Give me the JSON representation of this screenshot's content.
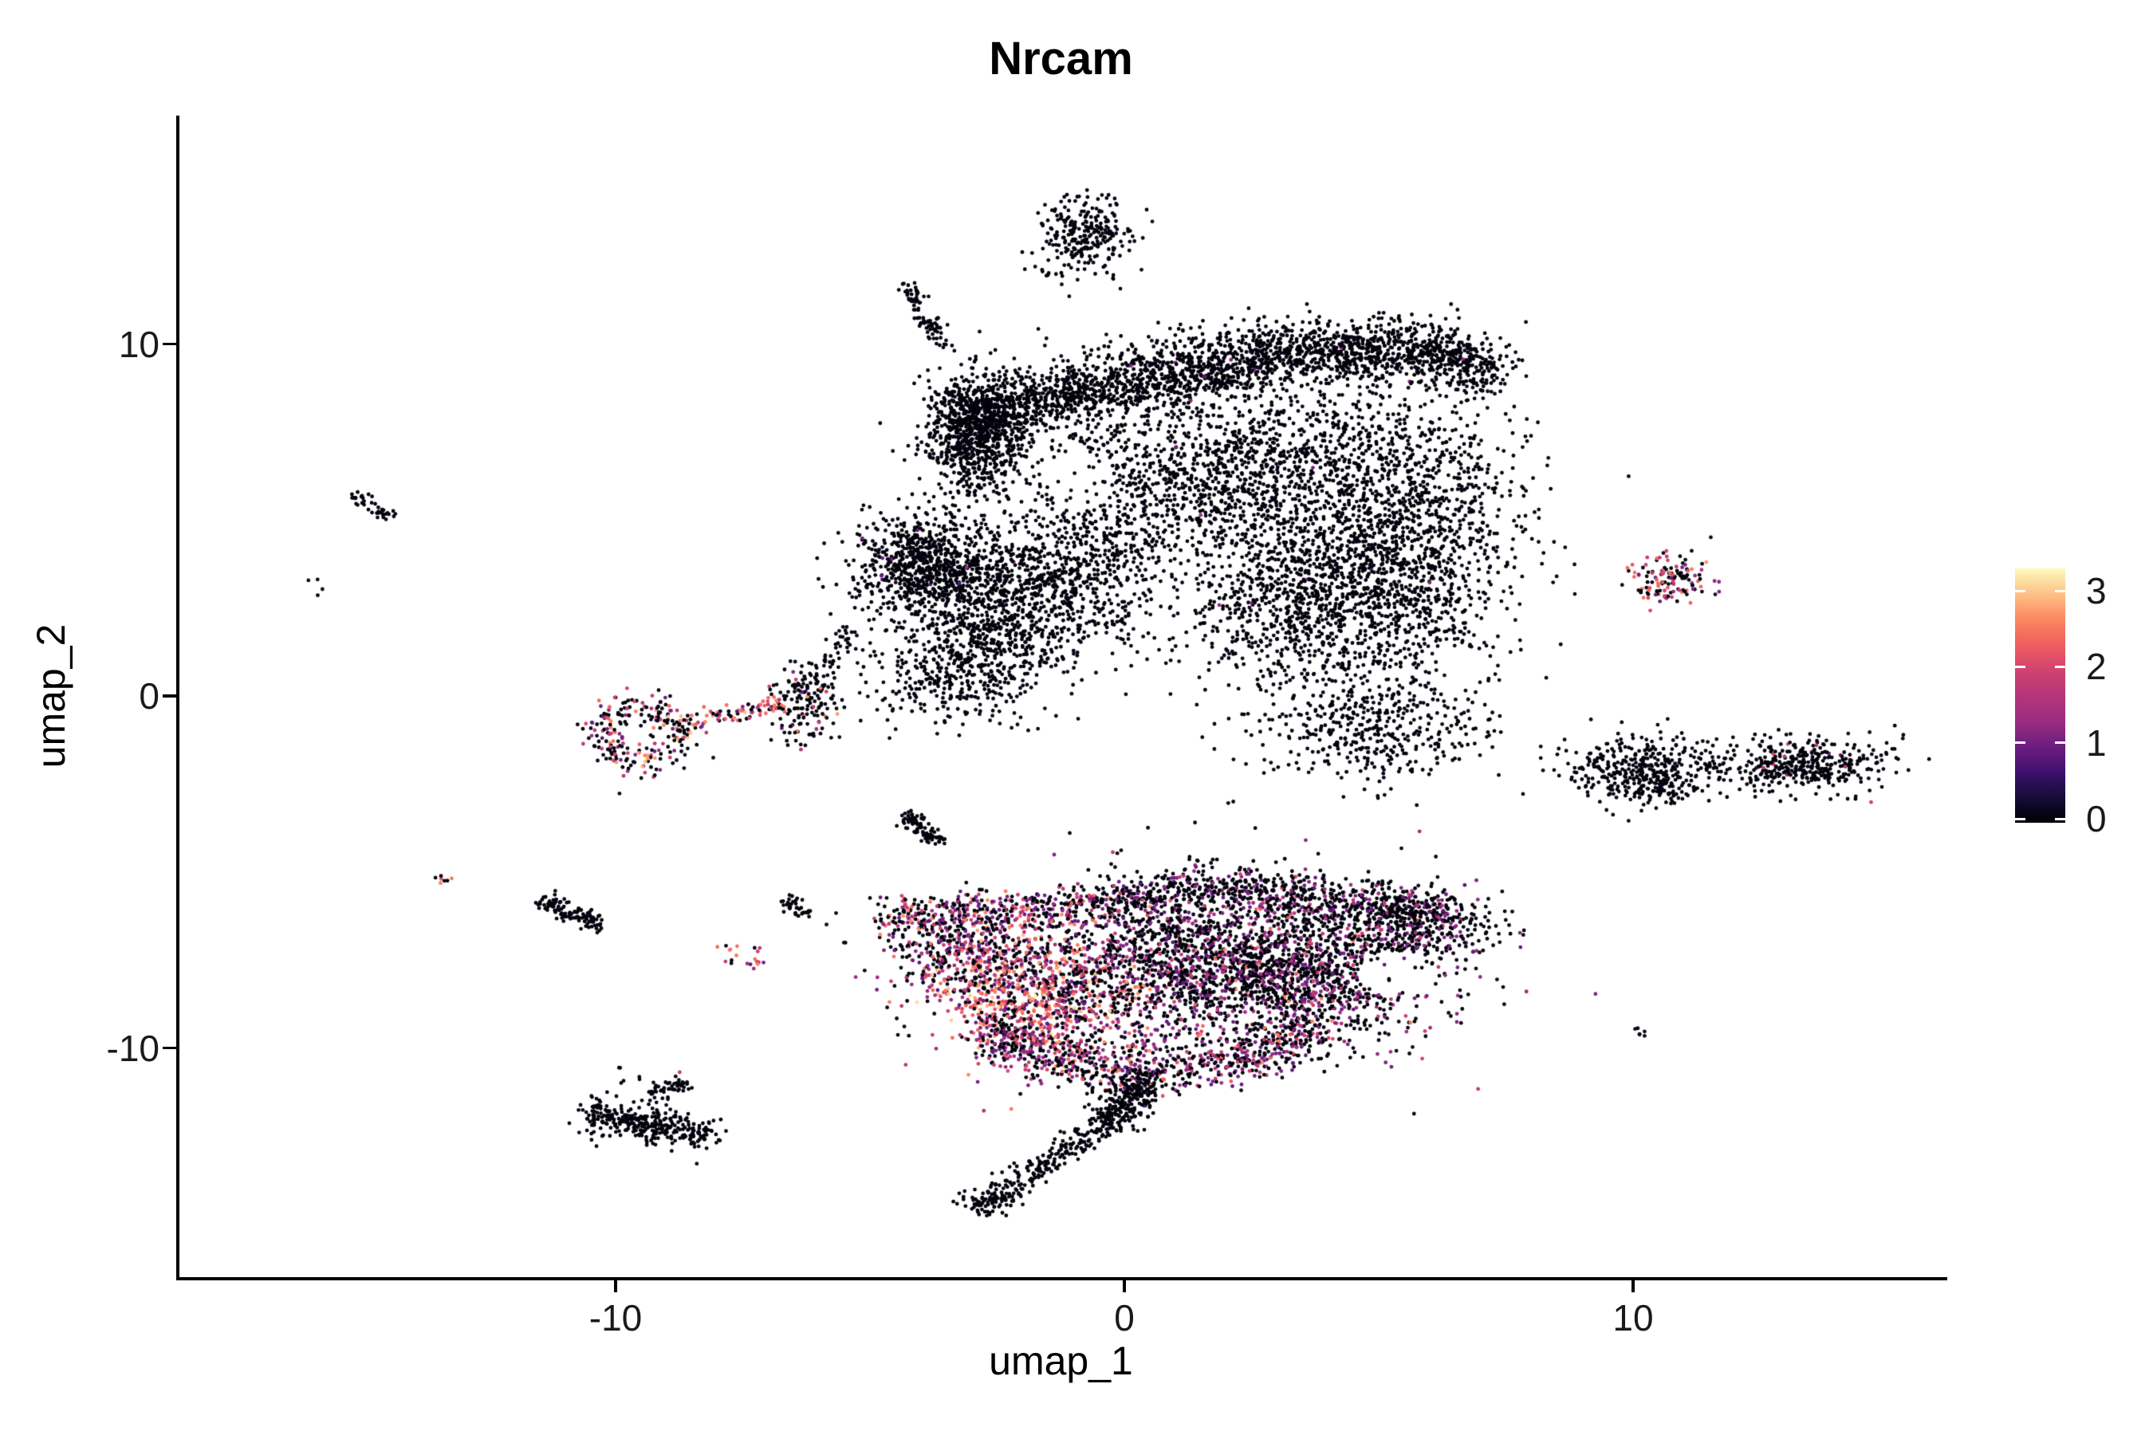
{
  "title": "Nrcam",
  "axes": {
    "x": {
      "label": "umap_1",
      "ticks": [
        {
          "v": -10,
          "label": "-10"
        },
        {
          "v": 0,
          "label": "0"
        },
        {
          "v": 10,
          "label": "10"
        }
      ],
      "range": [
        -18.6,
        16.1
      ]
    },
    "y": {
      "label": "umap_2",
      "ticks": [
        {
          "v": 10,
          "label": "10"
        },
        {
          "v": 0,
          "label": "0"
        },
        {
          "v": -10,
          "label": "-10"
        }
      ],
      "range": [
        -16.5,
        16.5
      ]
    }
  },
  "colorbar": {
    "labels": [
      {
        "v": 3,
        "label": "3"
      },
      {
        "v": 2,
        "label": "2"
      },
      {
        "v": 1,
        "label": "1"
      },
      {
        "v": 0,
        "label": "0"
      }
    ],
    "vmin": -0.05,
    "vmax": 3.29,
    "norm_max": 3.3,
    "magma_stops": [
      [
        0.0,
        "#000004"
      ],
      [
        0.1,
        "#180f3e"
      ],
      [
        0.2,
        "#451077"
      ],
      [
        0.3,
        "#721f81"
      ],
      [
        0.4,
        "#9f2f7f"
      ],
      [
        0.5,
        "#b73779"
      ],
      [
        0.6,
        "#d3436e"
      ],
      [
        0.7,
        "#f1605d"
      ],
      [
        0.8,
        "#fc8961"
      ],
      [
        0.9,
        "#fec488"
      ],
      [
        1.0,
        "#fcfdbf"
      ]
    ]
  },
  "chart_data": {
    "type": "scatter",
    "title": "Nrcam",
    "xlabel": "umap_1",
    "ylabel": "umap_2",
    "xlim": [
      -18.6,
      16.1
    ],
    "ylim": [
      -16.5,
      16.5
    ],
    "grid": false,
    "legend_position": "right-colorbar",
    "point_radius_px": 2.4,
    "seed": 7,
    "expr_levels": {
      "black": [
        0,
        0.1
      ],
      "purple": [
        0.8,
        1.35
      ],
      "magenta": [
        1.6,
        2.0
      ],
      "pinkred": [
        2.0,
        2.35
      ],
      "salmon": [
        2.35,
        2.7
      ],
      "orange": [
        2.7,
        3.0
      ],
      "light": [
        3.0,
        3.3
      ]
    },
    "clusters": [
      {
        "id": "t1",
        "shape": "gauss",
        "c": [
          -0.72,
          13.25
        ],
        "s": [
          0.42,
          0.5
        ],
        "n": 230,
        "mix": {
          "black": 1
        }
      },
      {
        "id": "t1b",
        "shape": "gauss",
        "c": [
          -0.9,
          12.35
        ],
        "s": [
          0.55,
          0.3
        ],
        "n": 45,
        "mix": {
          "black": 1
        }
      },
      {
        "id": "t2",
        "shape": "band",
        "path": [
          [
            -4.3,
            11.7
          ],
          [
            -3.55,
            9.9
          ]
        ],
        "w": 0.11,
        "n": 85,
        "mix": {
          "black": 1
        }
      },
      {
        "id": "u1",
        "shape": "band",
        "path": [
          [
            -3.3,
            7.9
          ],
          [
            0.3,
            9.0
          ],
          [
            3.4,
            9.7
          ],
          [
            6.5,
            9.9
          ],
          [
            7.2,
            8.8
          ]
        ],
        "w": 0.42,
        "n": 2300,
        "mix": {
          "black": 0.995,
          "purple": 0.005
        }
      },
      {
        "id": "u2",
        "shape": "gauss",
        "c": [
          -2.88,
          7.45
        ],
        "s": [
          0.5,
          0.85
        ],
        "n": 800,
        "mix": {
          "black": 1
        }
      },
      {
        "id": "u3",
        "shape": "gauss",
        "c": [
          2.2,
          6.4
        ],
        "s": [
          2.0,
          1.3
        ],
        "n": 1550,
        "mix": {
          "black": 0.995,
          "purple": 0.005
        }
      },
      {
        "id": "u4",
        "shape": "gauss",
        "c": [
          4.1,
          2.9
        ],
        "s": [
          1.5,
          1.4
        ],
        "n": 1450,
        "mix": {
          "black": 0.995,
          "purple": 0.005
        }
      },
      {
        "id": "u5",
        "shape": "gauss",
        "c": [
          5.8,
          5.2
        ],
        "s": [
          1.0,
          1.7
        ],
        "n": 750,
        "mix": {
          "black": 1
        }
      },
      {
        "id": "u6",
        "shape": "gauss",
        "c": [
          4.9,
          -0.9
        ],
        "s": [
          1.05,
          0.8
        ],
        "n": 430,
        "mix": {
          "black": 1
        }
      },
      {
        "id": "u7",
        "shape": "gauss",
        "c": [
          -3.9,
          3.6
        ],
        "s": [
          0.7,
          0.75
        ],
        "n": 780,
        "mix": {
          "black": 0.99,
          "purple": 0.01
        }
      },
      {
        "id": "u8",
        "shape": "gauss",
        "c": [
          -2.3,
          2.9
        ],
        "s": [
          0.8,
          0.9
        ],
        "n": 600,
        "mix": {
          "black": 1
        }
      },
      {
        "id": "u9",
        "shape": "gauss",
        "c": [
          -3.1,
          0.9
        ],
        "s": [
          1.0,
          0.85
        ],
        "n": 520,
        "mix": {
          "black": 1
        }
      },
      {
        "id": "u10",
        "shape": "gauss",
        "c": [
          -0.7,
          3.8
        ],
        "s": [
          0.75,
          1.3
        ],
        "n": 480,
        "mix": {
          "black": 1
        }
      },
      {
        "id": "u11",
        "shape": "band",
        "path": [
          [
            -5.3,
            1.9
          ],
          [
            -6.2,
            0.2
          ]
        ],
        "w": 0.16,
        "n": 60,
        "mix": {
          "black": 1
        }
      },
      {
        "id": "u12",
        "shape": "gauss",
        "c": [
          2.6,
          10.2
        ],
        "s": [
          1.7,
          0.3
        ],
        "n": 100,
        "mix": {
          "black": 1
        }
      },
      {
        "id": "d1",
        "shape": "band",
        "path": [
          [
            -15.1,
            5.75
          ],
          [
            -14.45,
            5.05
          ]
        ],
        "w": 0.09,
        "n": 38,
        "mix": {
          "black": 1
        }
      },
      {
        "id": "d2",
        "shape": "dots",
        "pts": [
          [
            -16.0,
            3.3
          ],
          [
            -15.82,
            2.95
          ]
        ],
        "per": 2,
        "s": 0.06,
        "mix": {
          "black": 1
        }
      },
      {
        "id": "e1",
        "shape": "ring",
        "c": [
          -9.55,
          -1.05
        ],
        "r": 0.78,
        "jitter": 0.26,
        "n": 230,
        "mix": {
          "black": 0.55,
          "purple": 0.16,
          "magenta": 0.13,
          "salmon": 0.1,
          "orange": 0.04,
          "pinkred": 0.02
        }
      },
      {
        "id": "e2",
        "shape": "band",
        "path": [
          [
            -8.75,
            -0.8
          ],
          [
            -6.6,
            -0.18
          ]
        ],
        "w": 0.15,
        "n": 85,
        "mix": {
          "black": 0.25,
          "purple": 0.1,
          "magenta": 0.2,
          "pinkred": 0.15,
          "salmon": 0.22,
          "orange": 0.08
        }
      },
      {
        "id": "e3",
        "shape": "gauss",
        "c": [
          -6.3,
          -0.25
        ],
        "s": [
          0.38,
          0.55
        ],
        "n": 150,
        "mix": {
          "black": 0.82,
          "purple": 0.06,
          "magenta": 0.05,
          "salmon": 0.05,
          "orange": 0.02
        }
      },
      {
        "id": "f1",
        "shape": "band",
        "path": [
          [
            -4.3,
            -3.35
          ],
          [
            -3.7,
            -4.18
          ]
        ],
        "w": 0.12,
        "n": 90,
        "mix": {
          "black": 1
        }
      },
      {
        "id": "g1",
        "shape": "dots",
        "pts": [
          [
            2.06,
            -3.1
          ]
        ],
        "per": 2,
        "s": 0.05,
        "mix": {
          "black": 1
        }
      },
      {
        "id": "h1",
        "shape": "band",
        "path": [
          [
            -13.5,
            -5.1
          ],
          [
            -13.22,
            -5.32
          ]
        ],
        "w": 0.08,
        "n": 7,
        "mix": {
          "salmon": 0.5,
          "pinkred": 0.3,
          "black": 0.2
        }
      },
      {
        "id": "i1",
        "shape": "band",
        "path": [
          [
            -11.45,
            -5.8
          ],
          [
            -10.28,
            -6.55
          ]
        ],
        "w": 0.13,
        "n": 115,
        "mix": {
          "black": 1
        }
      },
      {
        "id": "j1",
        "shape": "band",
        "path": [
          [
            -6.7,
            -5.75
          ],
          [
            -6.25,
            -6.2
          ]
        ],
        "w": 0.1,
        "n": 35,
        "mix": {
          "black": 1
        }
      },
      {
        "id": "j2",
        "shape": "dots",
        "pts": [
          [
            -5.88,
            -6.5
          ],
          [
            -5.62,
            -6.2
          ],
          [
            -5.5,
            -6.95
          ],
          [
            -4.35,
            -6.6
          ]
        ],
        "per": 1,
        "s": 0.04,
        "mix": {
          "black": 1
        }
      },
      {
        "id": "k1",
        "shape": "gauss",
        "c": [
          -7.6,
          -7.4
        ],
        "s": [
          0.3,
          0.22
        ],
        "n": 20,
        "mix": {
          "black": 0.35,
          "purple": 0.25,
          "magenta": 0.2,
          "salmon": 0.2
        }
      },
      {
        "id": "w1",
        "shape": "band",
        "path": [
          [
            -4.75,
            -6.3
          ],
          [
            -2.5,
            -6.1
          ],
          [
            -0.5,
            -5.9
          ]
        ],
        "w": 0.28,
        "n": 380,
        "mix": {
          "black": 0.5,
          "purple": 0.24,
          "magenta": 0.16,
          "salmon": 0.1
        }
      },
      {
        "id": "w2",
        "shape": "gauss",
        "c": [
          -3.2,
          -7.3
        ],
        "s": [
          0.75,
          0.65
        ],
        "n": 360,
        "mix": {
          "black": 0.45,
          "purple": 0.25,
          "magenta": 0.18,
          "salmon": 0.08,
          "orange": 0.04
        }
      },
      {
        "id": "w3",
        "shape": "gauss",
        "c": [
          -1.6,
          -8.6
        ],
        "s": [
          1.0,
          0.95
        ],
        "n": 820,
        "mix": {
          "black": 0.25,
          "purple": 0.17,
          "magenta": 0.2,
          "pinkred": 0.12,
          "salmon": 0.18,
          "orange": 0.07,
          "light": 0.01
        }
      },
      {
        "id": "w4",
        "shape": "gauss",
        "c": [
          1.9,
          -7.5
        ],
        "s": [
          1.9,
          1.15
        ],
        "n": 2300,
        "mix": {
          "black": 0.7,
          "purple": 0.23,
          "magenta": 0.05,
          "pinkred": 0.01,
          "salmon": 0.01
        }
      },
      {
        "id": "w5",
        "shape": "band",
        "path": [
          [
            -0.5,
            -5.9
          ],
          [
            2.0,
            -5.45
          ],
          [
            4.5,
            -5.8
          ],
          [
            6.4,
            -6.1
          ]
        ],
        "w": 0.3,
        "n": 650,
        "mix": {
          "black": 0.8,
          "purple": 0.17,
          "magenta": 0.03
        }
      },
      {
        "id": "w6",
        "shape": "gauss",
        "c": [
          5.8,
          -6.6
        ],
        "s": [
          0.8,
          0.5
        ],
        "n": 330,
        "mix": {
          "black": 0.85,
          "purple": 0.14,
          "magenta": 0.01
        }
      },
      {
        "id": "w7",
        "shape": "band",
        "path": [
          [
            -2.8,
            -9.6
          ],
          [
            0.0,
            -10.7
          ],
          [
            2.3,
            -10.4
          ],
          [
            3.9,
            -9.3
          ]
        ],
        "w": 0.38,
        "n": 780,
        "mix": {
          "black": 0.55,
          "purple": 0.27,
          "magenta": 0.11,
          "pinkred": 0.04,
          "salmon": 0.03
        }
      },
      {
        "id": "w8",
        "shape": "gauss",
        "c": [
          4.2,
          -8.2
        ],
        "s": [
          1.0,
          0.8
        ],
        "n": 430,
        "mix": {
          "black": 0.72,
          "purple": 0.22,
          "magenta": 0.05,
          "salmon": 0.01
        }
      },
      {
        "id": "m1",
        "shape": "band",
        "path": [
          [
            0.45,
            -10.8
          ],
          [
            -0.4,
            -12.25
          ]
        ],
        "w": 0.26,
        "n": 300,
        "mix": {
          "black": 1
        }
      },
      {
        "id": "m2",
        "shape": "band",
        "path": [
          [
            -0.4,
            -12.25
          ],
          [
            -2.85,
            -14.5
          ]
        ],
        "w": 0.2,
        "n": 230,
        "mix": {
          "black": 1
        }
      },
      {
        "id": "m3",
        "shape": "gauss",
        "c": [
          -2.75,
          -14.4
        ],
        "s": [
          0.28,
          0.18
        ],
        "n": 45,
        "mix": {
          "black": 1
        }
      },
      {
        "id": "n1",
        "shape": "band",
        "path": [
          [
            -10.6,
            -11.9
          ],
          [
            -9.5,
            -12.1
          ],
          [
            -8.15,
            -12.5
          ]
        ],
        "w": 0.26,
        "n": 340,
        "mix": {
          "black": 1
        }
      },
      {
        "id": "n2",
        "shape": "dots",
        "pts": [
          [
            -10.0,
            -10.5
          ],
          [
            -9.85,
            -11.05
          ],
          [
            -10.3,
            -11.4
          ],
          [
            -9.6,
            -10.9
          ],
          [
            -8.9,
            -11.4
          ]
        ],
        "per": 2,
        "s": 0.07,
        "mix": {
          "black": 1
        }
      },
      {
        "id": "n3",
        "shape": "band",
        "path": [
          [
            -9.35,
            -11.25
          ],
          [
            -8.55,
            -11.0
          ]
        ],
        "w": 0.1,
        "n": 45,
        "mix": {
          "black": 1
        }
      },
      {
        "id": "n4",
        "shape": "dots",
        "pts": [
          [
            -8.72,
            -10.68
          ]
        ],
        "per": 1,
        "s": 0.03,
        "mix": {
          "magenta": 1
        }
      },
      {
        "id": "o1",
        "shape": "gauss",
        "c": [
          10.75,
          3.3
        ],
        "s": [
          0.42,
          0.4
        ],
        "n": 135,
        "mix": {
          "black": 0.55,
          "purple": 0.12,
          "magenta": 0.14,
          "pinkred": 0.09,
          "salmon": 0.1
        }
      },
      {
        "id": "p1",
        "shape": "gauss",
        "c": [
          10.0,
          -2.05
        ],
        "s": [
          0.75,
          0.5
        ],
        "n": 330,
        "mix": {
          "black": 1
        }
      },
      {
        "id": "p1b",
        "shape": "gauss",
        "c": [
          10.55,
          -2.6
        ],
        "s": [
          0.3,
          0.22
        ],
        "n": 70,
        "mix": {
          "black": 1
        }
      },
      {
        "id": "p2",
        "shape": "band",
        "path": [
          [
            11.0,
            -1.95
          ],
          [
            11.9,
            -2.0
          ]
        ],
        "w": 0.04,
        "n": 8,
        "mix": {
          "black": 1
        }
      },
      {
        "id": "p3",
        "shape": "gauss",
        "c": [
          13.3,
          -1.9
        ],
        "s": [
          0.85,
          0.38
        ],
        "n": 420,
        "mix": {
          "black": 0.96,
          "purple": 0.02,
          "magenta": 0.02
        }
      },
      {
        "id": "p4",
        "shape": "dots",
        "pts": [
          [
            13.05,
            -1.35
          ],
          [
            13.6,
            -1.42
          ]
        ],
        "per": 1,
        "s": 0.04,
        "mix": {
          "magenta": 1
        }
      },
      {
        "id": "q1",
        "shape": "band",
        "path": [
          [
            9.98,
            -9.42
          ],
          [
            10.25,
            -9.65
          ]
        ],
        "w": 0.06,
        "n": 6,
        "mix": {
          "black": 1
        }
      }
    ],
    "holes": [
      {
        "c": [
          5.35,
          -7.9
        ],
        "rx": 0.78,
        "ry": 0.62,
        "p": 0.85,
        "applies": [
          "w4",
          "w6",
          "w8"
        ]
      },
      {
        "c": [
          -0.85,
          6.1
        ],
        "rx": 0.65,
        "ry": 0.85,
        "p": 0.7,
        "applies": [
          "u3",
          "u10"
        ]
      }
    ]
  }
}
